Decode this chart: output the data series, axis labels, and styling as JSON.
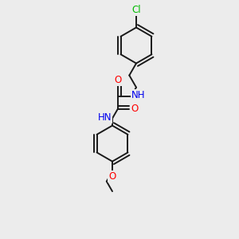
{
  "background_color": "#ececec",
  "bond_color": "#1a1a1a",
  "lw": 1.4,
  "atom_colors": {
    "Cl": "#00bb00",
    "O": "#ff0000",
    "N": "#0000ee",
    "C": "#1a1a1a"
  },
  "fontsize": 8.5,
  "figsize": [
    3.0,
    3.0
  ],
  "dpi": 100,
  "xlim": [
    0,
    10
  ],
  "ylim": [
    0,
    10
  ]
}
